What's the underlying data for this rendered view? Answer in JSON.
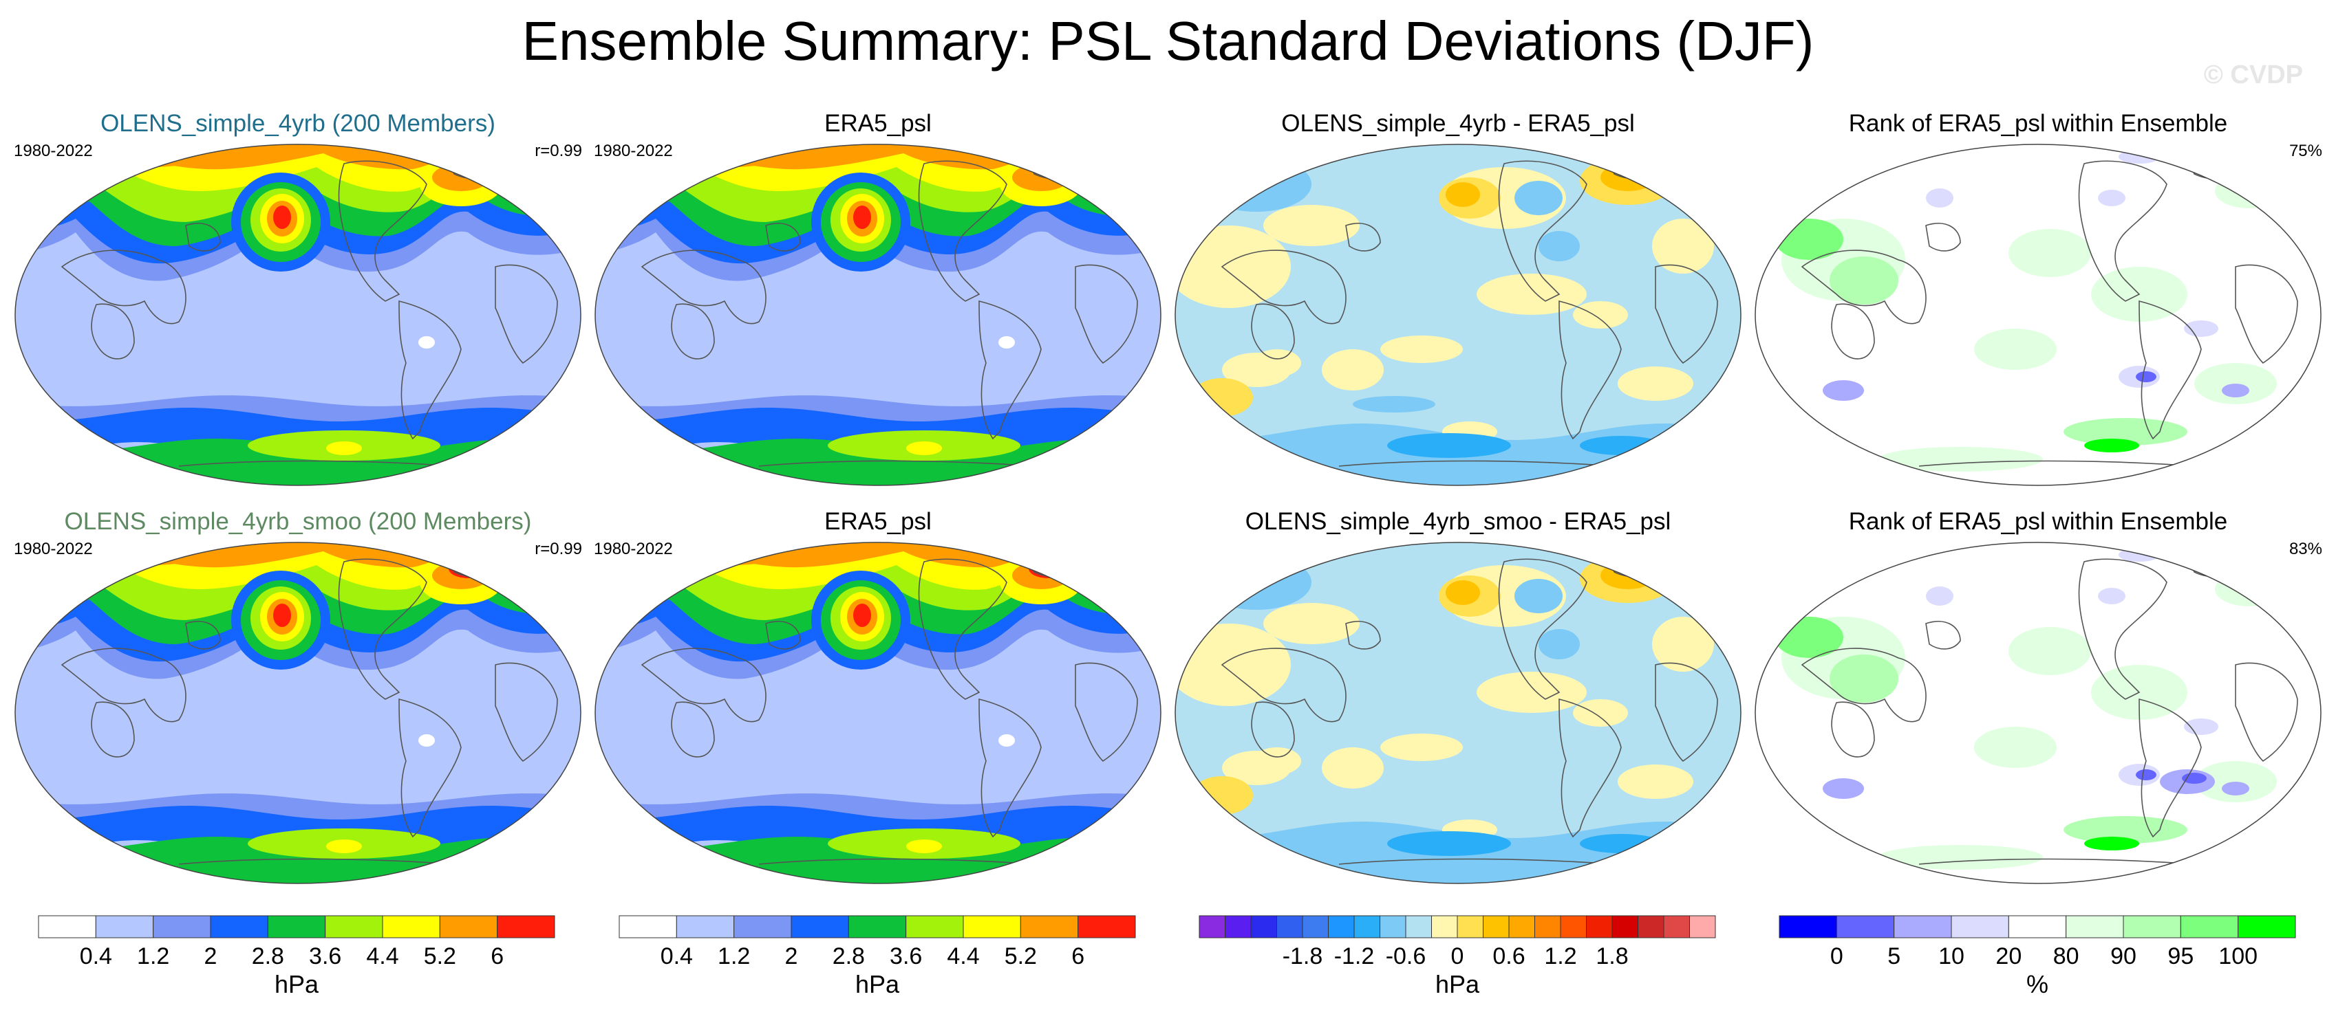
{
  "figure": {
    "title": "Ensemble Summary: PSL Standard Deviations (DJF)",
    "watermark": "© CVDP"
  },
  "chart_data": [
    {
      "type": "heatmap",
      "row": 1,
      "col": 1,
      "title": "OLENS_simple_4yrb (200 Members)",
      "title_color": "#1f6e8c",
      "period": "1980-2022",
      "stat": "r=0.99",
      "colorbar": "std"
    },
    {
      "type": "heatmap",
      "row": 1,
      "col": 2,
      "title": "ERA5_psl",
      "title_color": "#000000",
      "period": "1980-2022",
      "stat": "",
      "colorbar": "std"
    },
    {
      "type": "heatmap",
      "row": 1,
      "col": 3,
      "title": "OLENS_simple_4yrb - ERA5_psl",
      "title_color": "#000000",
      "period": "",
      "stat": "",
      "colorbar": "diff"
    },
    {
      "type": "heatmap",
      "row": 1,
      "col": 4,
      "title": "Rank of ERA5_psl within Ensemble",
      "title_color": "#000000",
      "period": "",
      "stat": "75%",
      "colorbar": "rank"
    },
    {
      "type": "heatmap",
      "row": 2,
      "col": 1,
      "title": "OLENS_simple_4yrb_smoo (200 Members)",
      "title_color": "#5e8a62",
      "period": "1980-2022",
      "stat": "r=0.99",
      "colorbar": "std"
    },
    {
      "type": "heatmap",
      "row": 2,
      "col": 2,
      "title": "ERA5_psl",
      "title_color": "#000000",
      "period": "1980-2022",
      "stat": "",
      "colorbar": "std"
    },
    {
      "type": "heatmap",
      "row": 2,
      "col": 3,
      "title": "OLENS_simple_4yrb_smoo - ERA5_psl",
      "title_color": "#000000",
      "period": "",
      "stat": "",
      "colorbar": "diff"
    },
    {
      "type": "heatmap",
      "row": 2,
      "col": 4,
      "title": "Rank of ERA5_psl within Ensemble",
      "title_color": "#000000",
      "period": "",
      "stat": "83%",
      "colorbar": "rank"
    }
  ],
  "colorbars": {
    "std": {
      "colors": [
        "#ffffff",
        "#b4c8ff",
        "#7b96f5",
        "#1464ff",
        "#0ec13b",
        "#a3f20c",
        "#ffff00",
        "#ff9d00",
        "#ff1e0a"
      ],
      "ticks": [
        "0.4",
        "1.2",
        "2",
        "2.8",
        "3.6",
        "4.4",
        "5.2",
        "6"
      ],
      "unit": "hPa"
    },
    "diff": {
      "colors": [
        "#8a2be2",
        "#5a1ef0",
        "#2b2bf0",
        "#3060ef",
        "#3d7cf0",
        "#1e96ff",
        "#2aaef7",
        "#7ccaf5",
        "#b3e1f2",
        "#fff7b0",
        "#ffe050",
        "#ffc200",
        "#ffa800",
        "#ff8400",
        "#ff5400",
        "#f02000",
        "#d50000",
        "#cc2828",
        "#e04848",
        "#ffaaaa"
      ],
      "ticks": [
        "-1.8",
        "-1.2",
        "-0.6",
        "0",
        "0.6",
        "1.2",
        "1.8"
      ],
      "unit": "hPa"
    },
    "rank": {
      "colors": [
        "#0000ff",
        "#6464ff",
        "#aaaaff",
        "#dcdcff",
        "#ffffff",
        "#e1ffe1",
        "#b2ffb2",
        "#7cff7c",
        "#00ff00"
      ],
      "ticks": [
        "0",
        "5",
        "10",
        "20",
        "80",
        "90",
        "95",
        "100"
      ],
      "unit": "%"
    }
  }
}
